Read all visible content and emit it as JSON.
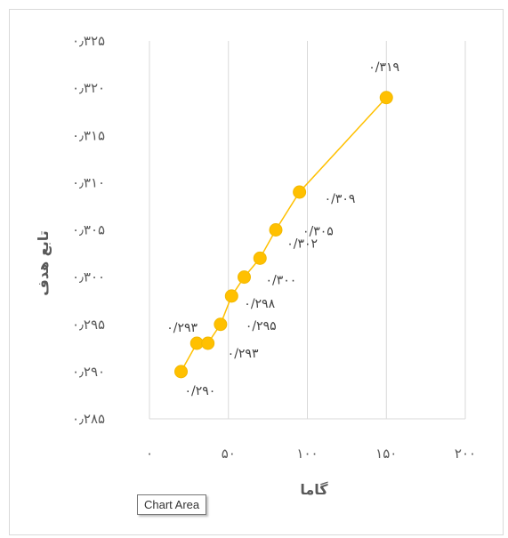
{
  "tooltip": "Chart Area",
  "chart_data": {
    "type": "scatter",
    "xlabel": "گاما",
    "ylabel": "تابع هدف",
    "xlim": [
      0,
      200
    ],
    "ylim": [
      0.285,
      0.325
    ],
    "x_ticks": [
      0,
      50,
      100,
      150,
      200
    ],
    "x_tick_labels": [
      "۰",
      "۵۰",
      "۱۰۰",
      "۱۵۰",
      "۲۰۰"
    ],
    "y_ticks": [
      0.285,
      0.29,
      0.295,
      0.3,
      0.305,
      0.31,
      0.315,
      0.32,
      0.325
    ],
    "y_tick_labels": [
      "۰٫۲۸۵",
      "۰٫۲۹۰",
      "۰٫۲۹۵",
      "۰٫۳۰۰",
      "۰٫۳۰۵",
      "۰٫۳۱۰",
      "۰٫۳۱۵",
      "۰٫۳۲۰",
      "۰٫۳۲۵"
    ],
    "grid": "vertical",
    "legend": "none",
    "series": [
      {
        "x": [
          20,
          30,
          37,
          45,
          52,
          60,
          70,
          80,
          95,
          150
        ],
        "y": [
          0.29,
          0.293,
          0.293,
          0.295,
          0.298,
          0.3,
          0.302,
          0.305,
          0.309,
          0.319
        ],
        "labels": [
          "۰/۲۹۰",
          "۰/۲۹۳",
          "۰/۲۹۳",
          "۰/۲۹۵",
          "۰/۲۹۸",
          "۰/۳۰۰",
          "۰/۳۰۲",
          "۰/۳۰۵",
          "۰/۳۰۹",
          "۰/۳۱۹"
        ],
        "color": "#FFC000",
        "line_color": "#FFC000"
      }
    ]
  }
}
